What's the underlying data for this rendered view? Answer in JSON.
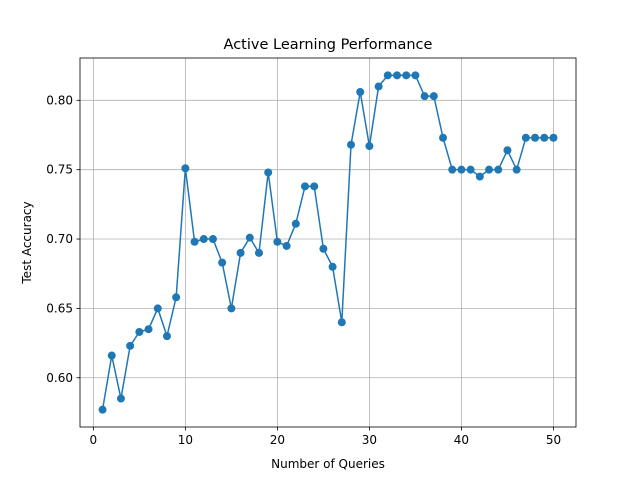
{
  "chart_data": {
    "type": "line",
    "title": "Active Learning Performance",
    "xlabel": "Number of Queries",
    "ylabel": "Test Accuracy",
    "xlim": [
      -1.45,
      52.45
    ],
    "ylim": [
      0.5645,
      0.8305
    ],
    "xticks": [
      0,
      10,
      20,
      30,
      40,
      50
    ],
    "xtick_labels": [
      "0",
      "10",
      "20",
      "30",
      "40",
      "50"
    ],
    "yticks": [
      0.6,
      0.65,
      0.7,
      0.75,
      0.8
    ],
    "ytick_labels": [
      "0.60",
      "0.65",
      "0.70",
      "0.75",
      "0.80"
    ],
    "grid": true,
    "marker": "circle",
    "color": "#1f77b4",
    "series": [
      {
        "x": [
          1,
          2,
          3,
          4,
          5,
          6,
          7,
          8,
          9,
          10,
          11,
          12,
          13,
          14,
          15,
          16,
          17,
          18,
          19,
          20,
          21,
          22,
          23,
          24,
          25,
          26,
          27,
          28,
          29,
          30,
          31,
          32,
          33,
          34,
          35,
          36,
          37,
          38,
          39,
          40,
          41,
          42,
          43,
          44,
          45,
          46,
          47,
          48,
          49,
          50
        ],
        "values": [
          0.577,
          0.616,
          0.585,
          0.623,
          0.633,
          0.635,
          0.65,
          0.63,
          0.658,
          0.751,
          0.698,
          0.7,
          0.7,
          0.683,
          0.65,
          0.69,
          0.701,
          0.69,
          0.748,
          0.698,
          0.695,
          0.711,
          0.738,
          0.738,
          0.693,
          0.68,
          0.64,
          0.768,
          0.806,
          0.767,
          0.81,
          0.818,
          0.818,
          0.818,
          0.818,
          0.803,
          0.803,
          0.773,
          0.75,
          0.75,
          0.75,
          0.745,
          0.75,
          0.75,
          0.764,
          0.75,
          0.773,
          0.773,
          0.773,
          0.773
        ]
      }
    ]
  }
}
